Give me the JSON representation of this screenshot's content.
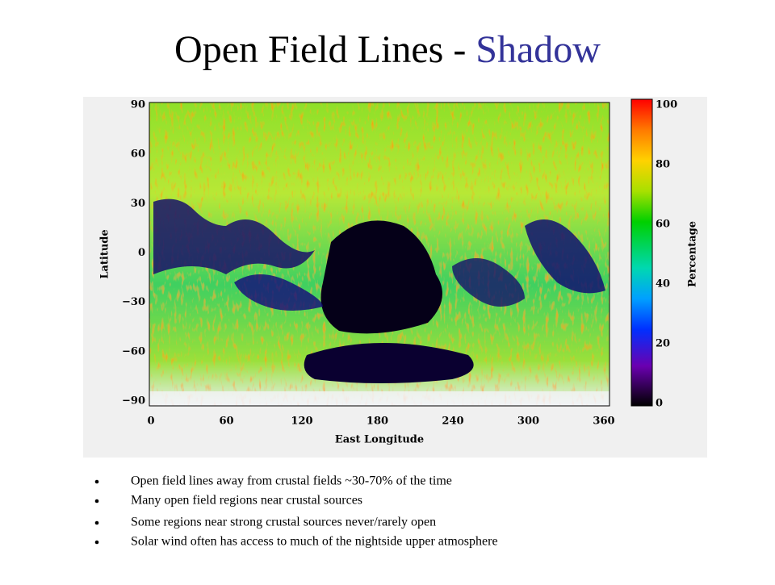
{
  "header": {
    "title": "Open Field Lines - ",
    "title_highlight": "Shadow"
  },
  "figure": {
    "x_label": "East Longitude",
    "y_label": "Latitude",
    "colorbar_label": "Percentage",
    "x_ticks": [
      "0",
      "60",
      "120",
      "180",
      "240",
      "300",
      "360"
    ],
    "y_ticks": [
      "90",
      "60",
      "30",
      "0",
      "−30",
      "−60",
      "−90"
    ],
    "colorbar_ticks": [
      "100",
      "80",
      "60",
      "40",
      "20",
      "0"
    ]
  },
  "bullets": [
    "Open field lines away from crustal fields ~30-70% of the time",
    "Many open field regions near crustal sources",
    "Some regions near strong crustal sources never/rarely open",
    "Solar wind often has access to much of the nightside upper atmosphere"
  ]
}
